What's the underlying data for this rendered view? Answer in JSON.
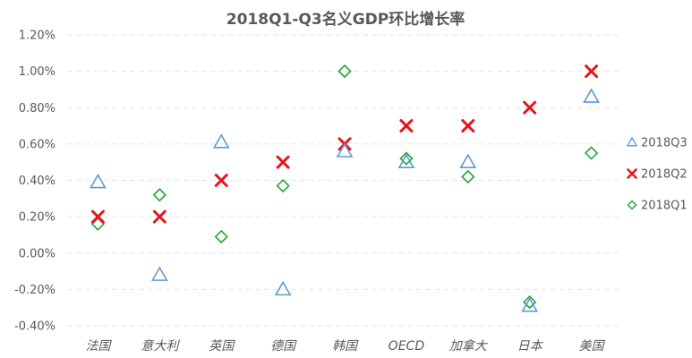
{
  "chart_data": {
    "type": "scatter",
    "title": "2018Q1-Q3名义GDP环比增长率",
    "categories": [
      "法国",
      "意大利",
      "英国",
      "德国",
      "韩国",
      "OECD",
      "加拿大",
      "日本",
      "美国"
    ],
    "ylim": [
      -0.4,
      1.2
    ],
    "yticks": [
      -0.4,
      -0.2,
      0.0,
      0.2,
      0.4,
      0.6,
      0.8,
      1.0,
      1.2
    ],
    "ytick_labels": [
      "-0.40%",
      "-0.20%",
      "0.00%",
      "0.20%",
      "0.40%",
      "0.60%",
      "0.80%",
      "1.00%",
      "1.20%"
    ],
    "y_unit": "%",
    "grid": true,
    "legend_position": "right",
    "series": [
      {
        "name": "2018Q3",
        "marker": "triangle",
        "color": "#5B9BD5",
        "values": [
          0.39,
          -0.12,
          0.61,
          -0.2,
          0.56,
          0.5,
          0.5,
          -0.29,
          0.86
        ]
      },
      {
        "name": "2018Q2",
        "marker": "x",
        "color": "#E8141C",
        "values": [
          0.2,
          0.2,
          0.4,
          0.5,
          0.6,
          0.7,
          0.7,
          0.8,
          1.0
        ]
      },
      {
        "name": "2018Q1",
        "marker": "diamond",
        "color": "#22A535",
        "values": [
          0.16,
          0.32,
          0.09,
          0.37,
          1.0,
          0.52,
          0.42,
          -0.27,
          0.55
        ]
      }
    ]
  }
}
